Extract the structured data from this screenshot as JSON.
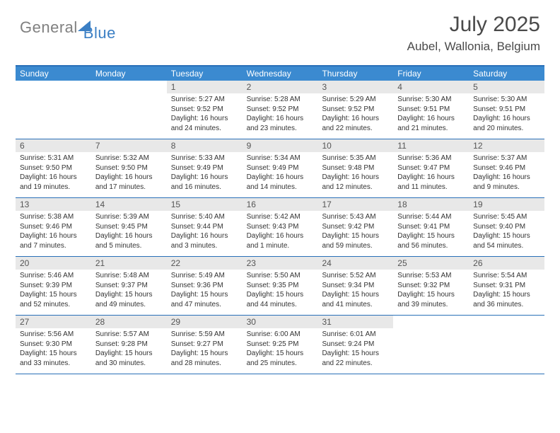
{
  "logo": {
    "gray": "General",
    "blue": "Blue"
  },
  "title": "July 2025",
  "location": "Aubel, Wallonia, Belgium",
  "colors": {
    "header_bg": "#3b8ad0",
    "header_border": "#2970b8",
    "daynum_bg": "#e8e8e8",
    "text_dark": "#333333",
    "text_gray": "#4a4a4a",
    "logo_gray": "#808080",
    "logo_blue": "#3b7fc4"
  },
  "dayNames": [
    "Sunday",
    "Monday",
    "Tuesday",
    "Wednesday",
    "Thursday",
    "Friday",
    "Saturday"
  ],
  "weeks": [
    [
      null,
      null,
      {
        "n": 1,
        "sr": "5:27 AM",
        "ss": "9:52 PM",
        "dl": "16 hours and 24 minutes."
      },
      {
        "n": 2,
        "sr": "5:28 AM",
        "ss": "9:52 PM",
        "dl": "16 hours and 23 minutes."
      },
      {
        "n": 3,
        "sr": "5:29 AM",
        "ss": "9:52 PM",
        "dl": "16 hours and 22 minutes."
      },
      {
        "n": 4,
        "sr": "5:30 AM",
        "ss": "9:51 PM",
        "dl": "16 hours and 21 minutes."
      },
      {
        "n": 5,
        "sr": "5:30 AM",
        "ss": "9:51 PM",
        "dl": "16 hours and 20 minutes."
      }
    ],
    [
      {
        "n": 6,
        "sr": "5:31 AM",
        "ss": "9:50 PM",
        "dl": "16 hours and 19 minutes."
      },
      {
        "n": 7,
        "sr": "5:32 AM",
        "ss": "9:50 PM",
        "dl": "16 hours and 17 minutes."
      },
      {
        "n": 8,
        "sr": "5:33 AM",
        "ss": "9:49 PM",
        "dl": "16 hours and 16 minutes."
      },
      {
        "n": 9,
        "sr": "5:34 AM",
        "ss": "9:49 PM",
        "dl": "16 hours and 14 minutes."
      },
      {
        "n": 10,
        "sr": "5:35 AM",
        "ss": "9:48 PM",
        "dl": "16 hours and 12 minutes."
      },
      {
        "n": 11,
        "sr": "5:36 AM",
        "ss": "9:47 PM",
        "dl": "16 hours and 11 minutes."
      },
      {
        "n": 12,
        "sr": "5:37 AM",
        "ss": "9:46 PM",
        "dl": "16 hours and 9 minutes."
      }
    ],
    [
      {
        "n": 13,
        "sr": "5:38 AM",
        "ss": "9:46 PM",
        "dl": "16 hours and 7 minutes."
      },
      {
        "n": 14,
        "sr": "5:39 AM",
        "ss": "9:45 PM",
        "dl": "16 hours and 5 minutes."
      },
      {
        "n": 15,
        "sr": "5:40 AM",
        "ss": "9:44 PM",
        "dl": "16 hours and 3 minutes."
      },
      {
        "n": 16,
        "sr": "5:42 AM",
        "ss": "9:43 PM",
        "dl": "16 hours and 1 minute."
      },
      {
        "n": 17,
        "sr": "5:43 AM",
        "ss": "9:42 PM",
        "dl": "15 hours and 59 minutes."
      },
      {
        "n": 18,
        "sr": "5:44 AM",
        "ss": "9:41 PM",
        "dl": "15 hours and 56 minutes."
      },
      {
        "n": 19,
        "sr": "5:45 AM",
        "ss": "9:40 PM",
        "dl": "15 hours and 54 minutes."
      }
    ],
    [
      {
        "n": 20,
        "sr": "5:46 AM",
        "ss": "9:39 PM",
        "dl": "15 hours and 52 minutes."
      },
      {
        "n": 21,
        "sr": "5:48 AM",
        "ss": "9:37 PM",
        "dl": "15 hours and 49 minutes."
      },
      {
        "n": 22,
        "sr": "5:49 AM",
        "ss": "9:36 PM",
        "dl": "15 hours and 47 minutes."
      },
      {
        "n": 23,
        "sr": "5:50 AM",
        "ss": "9:35 PM",
        "dl": "15 hours and 44 minutes."
      },
      {
        "n": 24,
        "sr": "5:52 AM",
        "ss": "9:34 PM",
        "dl": "15 hours and 41 minutes."
      },
      {
        "n": 25,
        "sr": "5:53 AM",
        "ss": "9:32 PM",
        "dl": "15 hours and 39 minutes."
      },
      {
        "n": 26,
        "sr": "5:54 AM",
        "ss": "9:31 PM",
        "dl": "15 hours and 36 minutes."
      }
    ],
    [
      {
        "n": 27,
        "sr": "5:56 AM",
        "ss": "9:30 PM",
        "dl": "15 hours and 33 minutes."
      },
      {
        "n": 28,
        "sr": "5:57 AM",
        "ss": "9:28 PM",
        "dl": "15 hours and 30 minutes."
      },
      {
        "n": 29,
        "sr": "5:59 AM",
        "ss": "9:27 PM",
        "dl": "15 hours and 28 minutes."
      },
      {
        "n": 30,
        "sr": "6:00 AM",
        "ss": "9:25 PM",
        "dl": "15 hours and 25 minutes."
      },
      {
        "n": 31,
        "sr": "6:01 AM",
        "ss": "9:24 PM",
        "dl": "15 hours and 22 minutes."
      },
      null,
      null
    ]
  ],
  "labels": {
    "sunrise": "Sunrise:",
    "sunset": "Sunset:",
    "daylight": "Daylight:"
  }
}
